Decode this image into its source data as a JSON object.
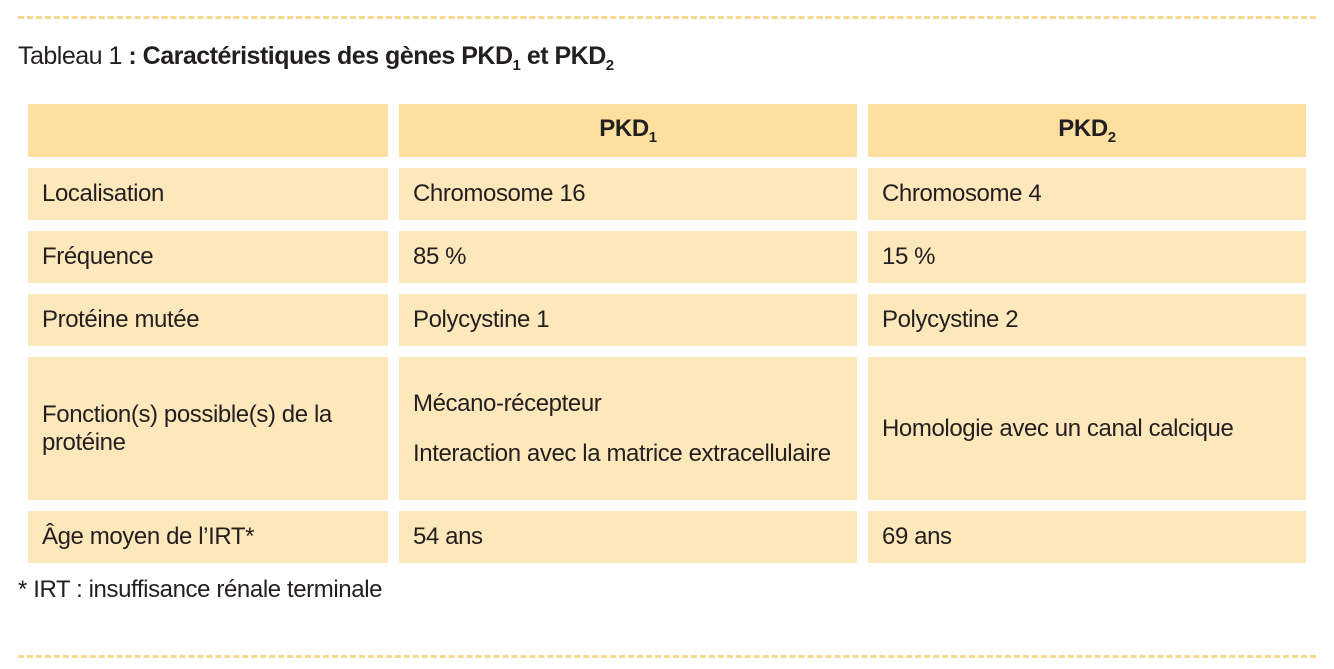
{
  "title": {
    "label": "Tableau 1",
    "heading": [
      ": Caractéristiques des gènes PKD",
      "1",
      " et PKD",
      "2"
    ]
  },
  "table": {
    "columns": [
      {
        "name": "PKD",
        "sub": "1"
      },
      {
        "name": "PKD",
        "sub": "2"
      }
    ],
    "rows": [
      [
        "Localisation",
        "Chromosome 16",
        "Chromosome 4"
      ],
      [
        "Fréquence",
        "85 %",
        "15 %"
      ],
      [
        "Protéine mutée",
        "Polycystine 1",
        "Polycystine 2"
      ],
      [
        "Fonction(s) possible(s) de la protéine",
        [
          "Mécano-récepteur",
          "Interaction avec la matrice extracellulaire"
        ],
        "Homologie avec un canal calcique"
      ],
      [
        "Âge moyen de l’IRT*",
        "54 ans",
        "69 ans"
      ]
    ]
  },
  "footnote": "* IRT : insuffisance rénale terminale"
}
